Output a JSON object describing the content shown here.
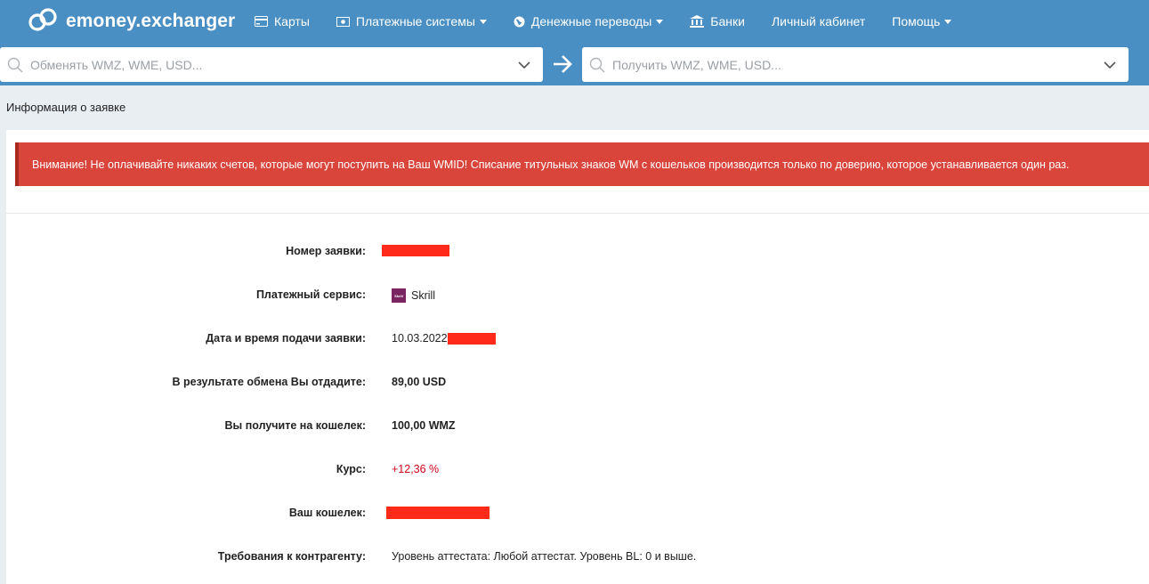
{
  "brand": {
    "name": "emoney.exchanger",
    "logo_icon": "chain-link-icon"
  },
  "nav": {
    "items": [
      {
        "label": "Карты",
        "icon": "card-icon",
        "dropdown": false
      },
      {
        "label": "Платежные системы",
        "icon": "banknote-icon",
        "dropdown": true
      },
      {
        "label": "Денежные переводы",
        "icon": "globe-icon",
        "dropdown": true
      },
      {
        "label": "Банки",
        "icon": "bank-icon",
        "dropdown": false
      },
      {
        "label": "Личный кабинет",
        "icon": "",
        "dropdown": false
      },
      {
        "label": "Помощь",
        "icon": "",
        "dropdown": true
      }
    ]
  },
  "search": {
    "give_placeholder": "Обменять WMZ, WME, USD...",
    "get_placeholder": "Получить WMZ, WME, USD..."
  },
  "breadcrumb": "Информация о заявке",
  "alert": {
    "text": "Внимание! Не оплачивайте никаких счетов, которые могут поступить на Ваш WMID! Списание титульных знаков WM с кошельков производится только по доверию, которое устанавливается один раз.",
    "color": "#d9443b"
  },
  "details": {
    "order_number_label": "Номер заявки:",
    "payment_service_label": "Платежный сервис:",
    "payment_service_value": "Skrill",
    "payment_service_logo_text": "Skrill",
    "date_label": "Дата и время подачи заявки:",
    "date_value": "10.03.2022",
    "give_label": "В результате обмена Вы отдадите:",
    "give_value": "89,00 USD",
    "receive_label": "Вы получите на кошелек:",
    "receive_value": "100,00 WMZ",
    "rate_label": "Курс:",
    "rate_value": "+12,36 %",
    "wallet_label": "Ваш кошелек:",
    "requirements_label": "Требования к контрагенту:",
    "requirements_value": "Уровень аттестата: Любой аттестат. Уровень BL: 0 и выше."
  },
  "colors": {
    "nav_bg": "#4a8fc3",
    "page_bg": "#e9eef3",
    "rate_red": "#d0021b",
    "redaction": "#ff2a1a"
  }
}
